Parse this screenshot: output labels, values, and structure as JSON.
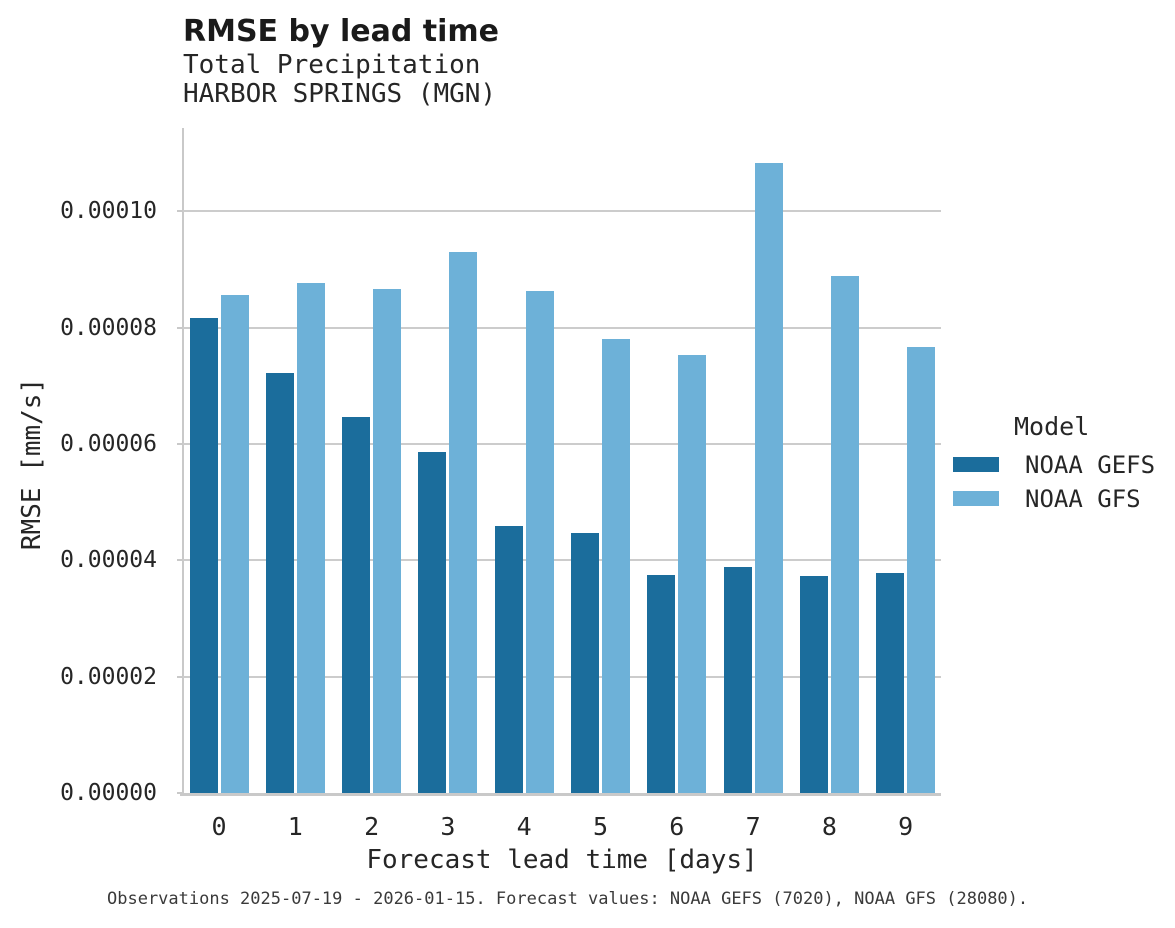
{
  "header": {
    "title": "RMSE by lead time",
    "subtitle_line1": "Total Precipitation",
    "subtitle_line2": "HARBOR SPRINGS (MGN)"
  },
  "footer": {
    "caption": "Observations 2025-07-19 - 2026-01-15. Forecast values: NOAA GEFS (7020), NOAA GFS (28080)."
  },
  "legend": {
    "title": "Model",
    "items": [
      {
        "label": "NOAA GEFS",
        "color": "#1b6d9c"
      },
      {
        "label": "NOAA GFS",
        "color": "#6db1d8"
      }
    ]
  },
  "colors": {
    "gefs_bar": "#1b6d9c",
    "gfs_bar": "#6db1d8",
    "gridline": "#cccccc",
    "spine": "#c9c9c9",
    "text": "#262626",
    "caption_text": "#3a3a3a"
  },
  "chart_data": {
    "type": "bar",
    "title": "RMSE by lead time",
    "subtitle": [
      "Total Precipitation",
      "HARBOR SPRINGS (MGN)"
    ],
    "xlabel": "Forecast lead time [days]",
    "ylabel": "RMSE [mm/s]",
    "categories": [
      "0",
      "1",
      "2",
      "3",
      "4",
      "5",
      "6",
      "7",
      "8",
      "9"
    ],
    "series": [
      {
        "name": "NOAA GEFS",
        "color": "#1b6d9c",
        "values": [
          8.17e-05,
          7.22e-05,
          6.47e-05,
          5.86e-05,
          4.59e-05,
          4.47e-05,
          3.75e-05,
          3.89e-05,
          3.73e-05,
          3.78e-05
        ]
      },
      {
        "name": "NOAA GFS",
        "color": "#6db1d8",
        "values": [
          8.56e-05,
          8.77e-05,
          8.67e-05,
          9.3e-05,
          8.63e-05,
          7.81e-05,
          7.53e-05,
          0.0001083,
          8.89e-05,
          7.67e-05
        ]
      }
    ],
    "ylim": [
      0,
      0.0001143
    ],
    "yticks": [
      0.0,
      2e-05,
      4e-05,
      6e-05,
      8e-05,
      0.0001
    ],
    "ytick_format_decimals": 5,
    "grid": true,
    "legend_position": "right",
    "legend_title": "Model"
  }
}
